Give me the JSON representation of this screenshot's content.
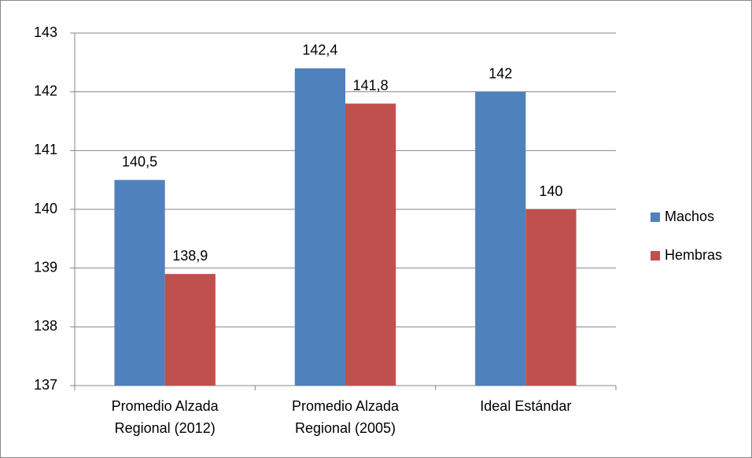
{
  "chart_data": {
    "type": "bar",
    "categories": [
      "Promedio Alzada Regional (2012)",
      "Promedio Alzada Regional (2005)",
      "Ideal Estándar"
    ],
    "series": [
      {
        "name": "Machos",
        "color": "#4f81bd",
        "values": [
          140.5,
          142.4,
          142
        ],
        "value_labels": [
          "140,5",
          "142,4",
          "142"
        ]
      },
      {
        "name": "Hembras",
        "color": "#c0504d",
        "values": [
          138.9,
          141.8,
          140
        ],
        "value_labels": [
          "138,9",
          "141,8",
          "140"
        ]
      }
    ],
    "ylim": [
      137,
      143
    ],
    "yticks": [
      137,
      138,
      139,
      140,
      141,
      142,
      143
    ],
    "grid": true,
    "legend": "right"
  }
}
